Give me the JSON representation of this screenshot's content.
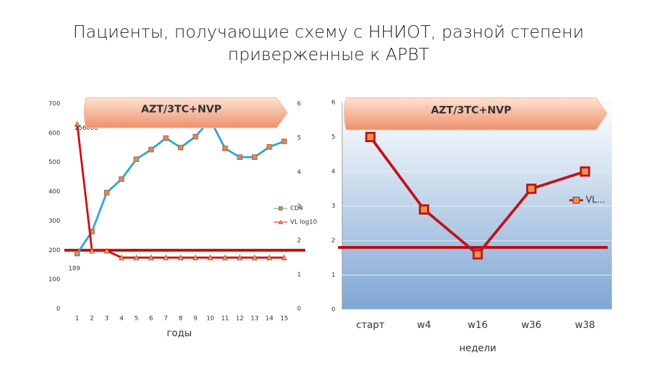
{
  "title": "Пациенты, получающие схему с ННИОТ, разной степени приверженные к АРВТ",
  "chart_data": [
    {
      "type": "line",
      "banner": "AZT/3TC+NVP",
      "xlabel": "годы",
      "categories": [
        "1",
        "2",
        "3",
        "4",
        "5",
        "6",
        "7",
        "8",
        "9",
        "10",
        "11",
        "12",
        "13",
        "14",
        "15"
      ],
      "series": [
        {
          "name": "CD4",
          "color": "#2ea8d6",
          "marker": "square",
          "marker_color": "#c8906a",
          "values": [
            189,
            264,
            397,
            443,
            511,
            544,
            583,
            551,
            588,
            646,
            548,
            518,
            518,
            553,
            572
          ]
        },
        {
          "name": "VL log10",
          "color": "#d01010",
          "marker": "triangle",
          "marker_color": "#e89a78",
          "axis": "y2",
          "values": [
            5.41,
            1.7,
            1.7,
            1.5,
            1.5,
            1.5,
            1.5,
            1.5,
            1.5,
            1.5,
            1.5,
            1.5,
            1.5,
            1.5,
            1.5
          ]
        }
      ],
      "ylim": [
        0,
        700
      ],
      "yticks": [
        0,
        100,
        200,
        300,
        400,
        500,
        600,
        700
      ],
      "y2lim": [
        0,
        6
      ],
      "y2ticks": [
        0,
        1,
        2,
        3,
        4,
        5,
        6
      ],
      "reference_line": {
        "value": 200,
        "color": "#c00000"
      },
      "annotations": [
        "256000"
      ],
      "legend": "right"
    },
    {
      "type": "line",
      "banner": "AZT/3TC+NVP",
      "xlabel": "недели",
      "categories": [
        "старт",
        "w4",
        "w16",
        "w36",
        "w38"
      ],
      "series": [
        {
          "name": "VL...",
          "color": "#c0141b",
          "marker": "square",
          "marker_color": "#e8954a",
          "values": [
            5,
            2.9,
            1.6,
            3.5,
            4
          ]
        }
      ],
      "ylim": [
        0,
        6
      ],
      "yticks": [
        0,
        1,
        2,
        3,
        4,
        5,
        6
      ],
      "reference_line": {
        "value": 1.8,
        "color": "#c00000"
      },
      "grid": true,
      "plot_background": [
        "#ffffff",
        "#7fa6d3"
      ],
      "legend": "right"
    }
  ]
}
